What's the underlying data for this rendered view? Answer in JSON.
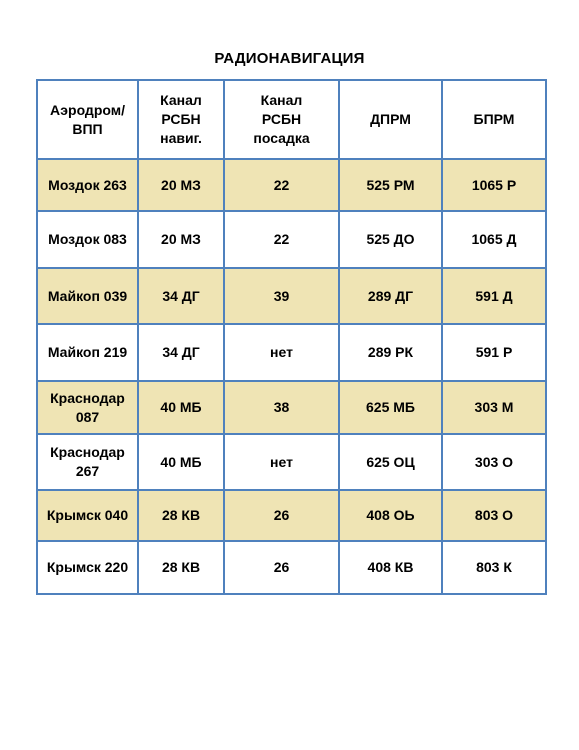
{
  "title": "РАДИОНАВИГАЦИЯ",
  "colors": {
    "border": "#4f81bd",
    "shaded_row": "#efe4b4",
    "plain_row": "#ffffff"
  },
  "table": {
    "headers": [
      "Аэродром/\nВПП",
      "Канал\nРСБН\nнавиг.",
      "Канал\nРСБН\nпосадка",
      "ДПРМ",
      "БПРМ"
    ],
    "rows": [
      [
        "Моздок 263",
        "20 МЗ",
        "22",
        "525 РМ",
        "1065 Р"
      ],
      [
        "Моздок 083",
        "20 МЗ",
        "22",
        "525 ДО",
        "1065 Д"
      ],
      [
        "Майкоп 039",
        "34 ДГ",
        "39",
        "289 ДГ",
        "591 Д"
      ],
      [
        "Майкоп 219",
        "34 ДГ",
        "нет",
        "289 РК",
        "591 Р"
      ],
      [
        "Краснодар\n087",
        "40 МБ",
        "38",
        "625 МБ",
        "303 М"
      ],
      [
        "Краснодар\n267",
        "40 МБ",
        "нет",
        "625 ОЦ",
        "303 О"
      ],
      [
        "Крымск 040",
        "28 КВ",
        "26",
        "408 ОЬ",
        "803 О"
      ],
      [
        "Крымск 220",
        "28 КВ",
        "26",
        "408 КВ",
        "803 К"
      ]
    ]
  }
}
